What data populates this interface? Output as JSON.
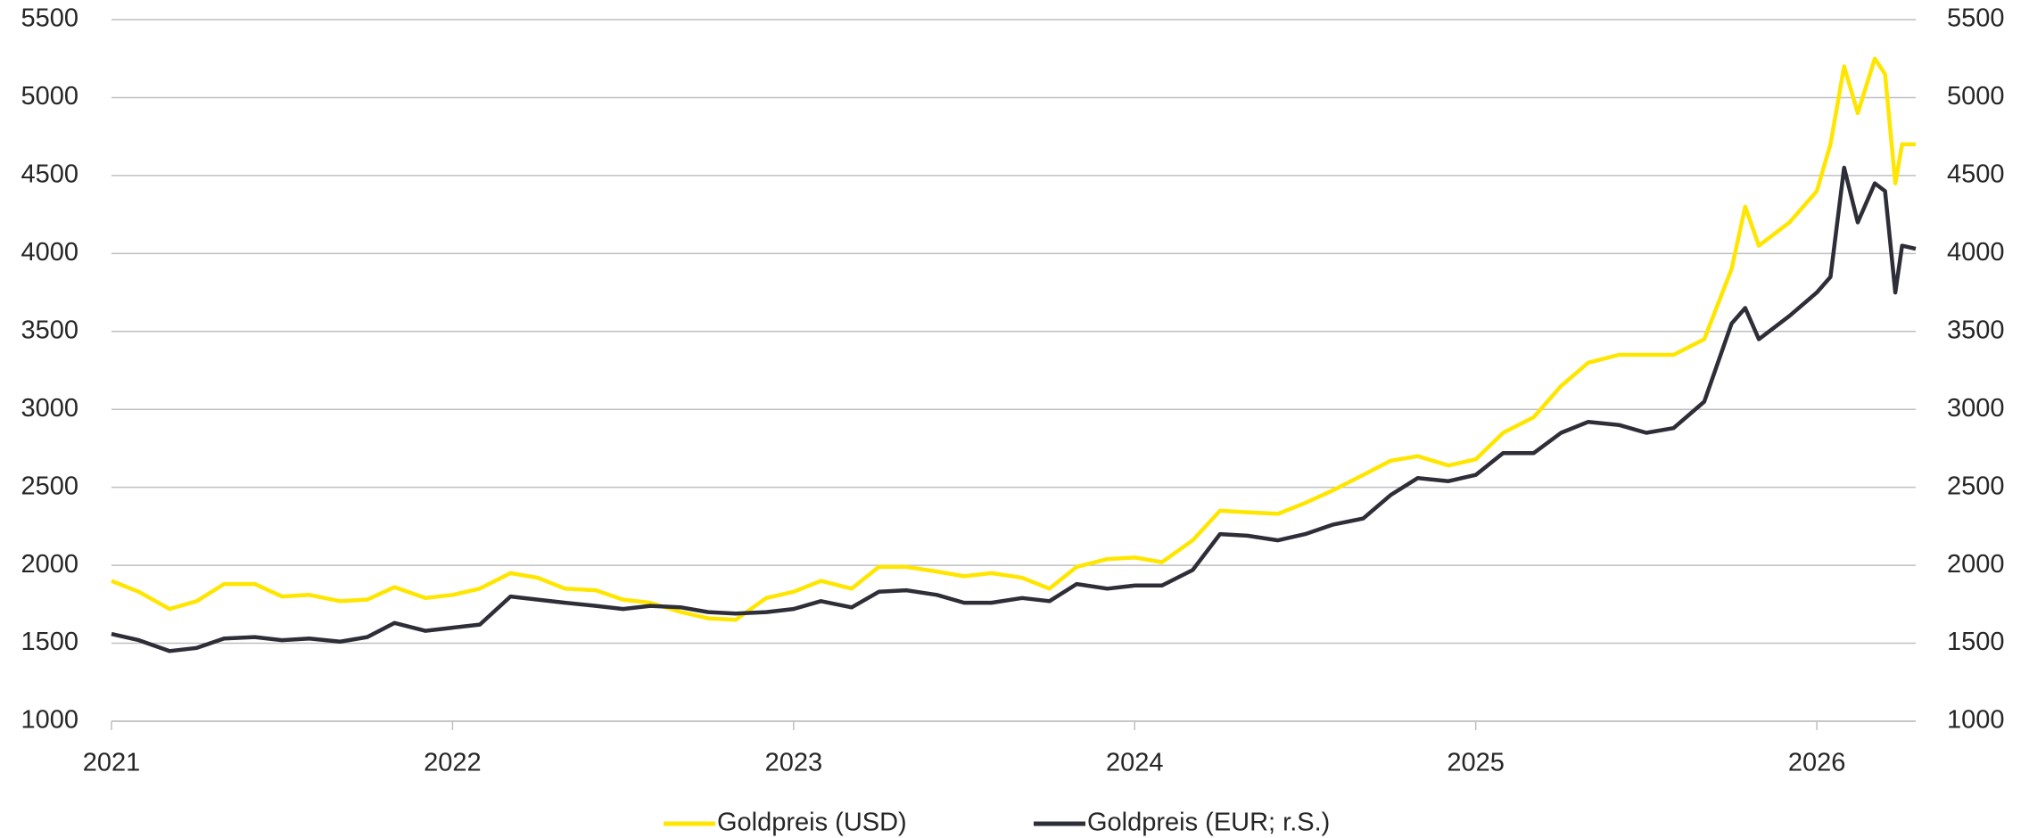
{
  "chart_data": {
    "type": "line",
    "x": [
      2021.0,
      2021.08,
      2021.17,
      2021.25,
      2021.33,
      2021.42,
      2021.5,
      2021.58,
      2021.67,
      2021.75,
      2021.83,
      2021.92,
      2022.0,
      2022.08,
      2022.17,
      2022.25,
      2022.33,
      2022.42,
      2022.5,
      2022.58,
      2022.67,
      2022.75,
      2022.83,
      2022.92,
      2023.0,
      2023.08,
      2023.17,
      2023.25,
      2023.33,
      2023.42,
      2023.5,
      2023.58,
      2023.67,
      2023.75,
      2023.83,
      2023.92,
      2024.0,
      2024.08,
      2024.17,
      2024.25,
      2024.33,
      2024.42,
      2024.5,
      2024.58,
      2024.67,
      2024.75,
      2024.83,
      2024.92,
      2025.0,
      2025.08,
      2025.17,
      2025.25,
      2025.33,
      2025.42,
      2025.5,
      2025.58,
      2025.67,
      2025.75,
      2025.79,
      2025.83,
      2025.92,
      2026.0,
      2026.04,
      2026.08,
      2026.12,
      2026.17,
      2026.2,
      2026.23,
      2026.25,
      2026.29
    ],
    "series": [
      {
        "name": "Goldpreis (USD)",
        "color": "#FFE600",
        "axis": "y",
        "values": [
          1900,
          1830,
          1720,
          1770,
          1880,
          1880,
          1800,
          1810,
          1770,
          1780,
          1860,
          1790,
          1810,
          1850,
          1950,
          1920,
          1850,
          1840,
          1780,
          1760,
          1700,
          1660,
          1650,
          1790,
          1830,
          1900,
          1850,
          1990,
          1990,
          1960,
          1930,
          1950,
          1920,
          1850,
          1990,
          2040,
          2050,
          2020,
          2160,
          2350,
          2340,
          2330,
          2400,
          2480,
          2580,
          2670,
          2700,
          2640,
          2680,
          2850,
          2950,
          3150,
          3300,
          3350,
          3350,
          3350,
          3450,
          3900,
          4300,
          4050,
          4200,
          4400,
          4700,
          5200,
          4900,
          5250,
          5150,
          4450,
          4700,
          4700
        ]
      },
      {
        "name": "Goldpreis (EUR; r.S.)",
        "color": "#2E2E38",
        "axis": "y2",
        "values": [
          1560,
          1520,
          1450,
          1470,
          1530,
          1540,
          1520,
          1530,
          1510,
          1540,
          1630,
          1580,
          1600,
          1620,
          1800,
          1780,
          1760,
          1740,
          1720,
          1740,
          1730,
          1700,
          1690,
          1700,
          1720,
          1770,
          1730,
          1830,
          1840,
          1810,
          1760,
          1760,
          1790,
          1770,
          1880,
          1850,
          1870,
          1870,
          1970,
          2200,
          2190,
          2160,
          2200,
          2260,
          2300,
          2450,
          2560,
          2540,
          2580,
          2720,
          2720,
          2850,
          2920,
          2900,
          2850,
          2880,
          3050,
          3550,
          3650,
          3450,
          3600,
          3750,
          3850,
          4550,
          4200,
          4450,
          4400,
          3750,
          4050,
          4030
        ]
      }
    ],
    "xlim": [
      2021,
      2026.29
    ],
    "xticks": [
      2021,
      2022,
      2023,
      2024,
      2025,
      2026
    ],
    "ylim": [
      1000,
      5500
    ],
    "yticks": [
      1000,
      1500,
      2000,
      2500,
      3000,
      3500,
      4000,
      4500,
      5000,
      5500
    ],
    "y2lim": [
      1000,
      5500
    ],
    "y2ticks": [
      1000,
      1500,
      2000,
      2500,
      3000,
      3500,
      4000,
      4500,
      5000,
      5500
    ],
    "grid": true,
    "legend": "bottom"
  }
}
